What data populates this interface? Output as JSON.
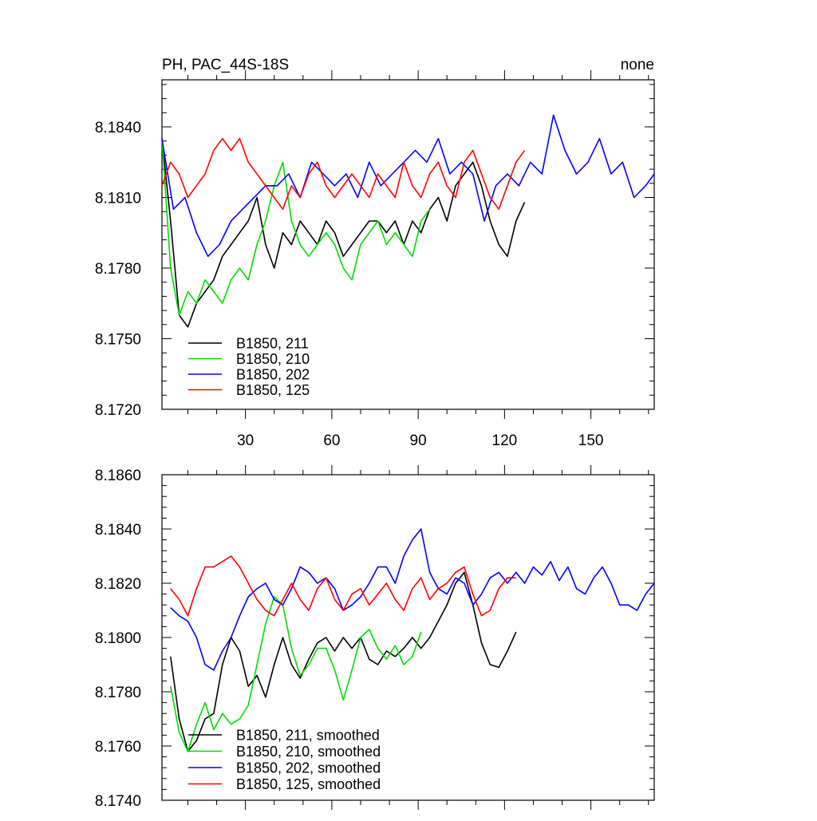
{
  "figure": {
    "title_left": "PH, PAC_44S-18S",
    "title_right": "none"
  },
  "colors": {
    "B1850_211": "#000000",
    "B1850_210": "#00dd00",
    "B1850_202": "#0000ff",
    "B1850_125": "#ff0000"
  },
  "chart_data": [
    {
      "type": "line",
      "title": "PH, PAC_44S-18S",
      "subtitle": "none",
      "xlabel": "",
      "ylabel": "",
      "xlim": [
        1,
        172
      ],
      "ylim": [
        8.172,
        8.186
      ],
      "xticks": [
        30,
        60,
        90,
        120,
        150
      ],
      "xtick_labels": [
        "30",
        "60",
        "90",
        "120",
        "150"
      ],
      "yticks": [
        8.172,
        8.175,
        8.178,
        8.181,
        8.184
      ],
      "ytick_labels": [
        "8.1720",
        "8.1750",
        "8.1780",
        "8.1810",
        "8.1840"
      ],
      "legend_position": "bottom-left",
      "series": [
        {
          "name": "B1850, 211",
          "color_key": "B1850_211",
          "x": [
            1,
            4,
            7,
            10,
            13,
            16,
            19,
            22,
            25,
            28,
            31,
            34,
            37,
            40,
            43,
            46,
            49,
            52,
            55,
            58,
            61,
            64,
            67,
            70,
            73,
            76,
            79,
            82,
            85,
            88,
            91,
            94,
            97,
            100,
            103,
            106,
            109,
            112,
            115,
            118,
            121,
            124,
            127
          ],
          "y": [
            8.1835,
            8.18,
            8.176,
            8.1755,
            8.1765,
            8.177,
            8.1775,
            8.1785,
            8.179,
            8.1795,
            8.18,
            8.181,
            8.179,
            8.178,
            8.1795,
            8.179,
            8.18,
            8.1795,
            8.179,
            8.18,
            8.1795,
            8.1785,
            8.179,
            8.1795,
            8.18,
            8.18,
            8.1795,
            8.18,
            8.179,
            8.18,
            8.1795,
            8.1805,
            8.181,
            8.18,
            8.1815,
            8.182,
            8.1825,
            8.1815,
            8.18,
            8.179,
            8.1785,
            8.18,
            8.1808
          ]
        },
        {
          "name": "B1850, 210",
          "color_key": "B1850_210",
          "x": [
            1,
            4,
            7,
            10,
            13,
            16,
            19,
            22,
            25,
            28,
            31,
            34,
            37,
            40,
            43,
            46,
            49,
            52,
            55,
            58,
            61,
            64,
            67,
            70,
            73,
            76,
            79,
            82,
            85,
            88,
            91,
            94
          ],
          "y": [
            8.1835,
            8.178,
            8.176,
            8.177,
            8.1765,
            8.1775,
            8.177,
            8.1765,
            8.1775,
            8.178,
            8.1775,
            8.179,
            8.18,
            8.1815,
            8.1825,
            8.18,
            8.179,
            8.1785,
            8.179,
            8.1795,
            8.179,
            8.178,
            8.1775,
            8.179,
            8.1795,
            8.18,
            8.179,
            8.1795,
            8.179,
            8.1785,
            8.18,
            8.1805
          ]
        },
        {
          "name": "B1850, 202",
          "color_key": "B1850_202",
          "x": [
            1,
            5,
            9,
            13,
            17,
            21,
            25,
            29,
            33,
            37,
            41,
            45,
            49,
            53,
            57,
            61,
            65,
            69,
            73,
            77,
            81,
            85,
            89,
            93,
            97,
            101,
            105,
            109,
            113,
            117,
            121,
            125,
            129,
            133,
            137,
            141,
            145,
            149,
            153,
            157,
            161,
            165,
            169,
            172
          ],
          "y": [
            8.1835,
            8.1805,
            8.181,
            8.1795,
            8.1785,
            8.179,
            8.18,
            8.1805,
            8.181,
            8.1815,
            8.1815,
            8.182,
            8.181,
            8.1825,
            8.182,
            8.1815,
            8.182,
            8.181,
            8.1825,
            8.1815,
            8.182,
            8.1825,
            8.183,
            8.1825,
            8.1835,
            8.182,
            8.1825,
            8.182,
            8.18,
            8.1815,
            8.182,
            8.1815,
            8.1825,
            8.182,
            8.1845,
            8.183,
            8.182,
            8.1825,
            8.1835,
            8.182,
            8.1825,
            8.181,
            8.1815,
            8.182
          ]
        },
        {
          "name": "B1850, 125",
          "color_key": "B1850_125",
          "x": [
            1,
            4,
            7,
            10,
            13,
            16,
            19,
            22,
            25,
            28,
            31,
            34,
            37,
            40,
            43,
            46,
            49,
            52,
            55,
            58,
            61,
            64,
            67,
            70,
            73,
            76,
            79,
            82,
            85,
            88,
            91,
            94,
            97,
            100,
            103,
            106,
            109,
            112,
            115,
            118,
            121,
            124,
            127
          ],
          "y": [
            8.1815,
            8.1825,
            8.182,
            8.181,
            8.1815,
            8.182,
            8.183,
            8.1835,
            8.183,
            8.1835,
            8.1825,
            8.182,
            8.1815,
            8.181,
            8.1805,
            8.1815,
            8.181,
            8.182,
            8.1825,
            8.1815,
            8.181,
            8.1815,
            8.182,
            8.1815,
            8.181,
            8.182,
            8.1815,
            8.181,
            8.1825,
            8.1815,
            8.181,
            8.182,
            8.1825,
            8.1815,
            8.181,
            8.1825,
            8.183,
            8.182,
            8.181,
            8.1805,
            8.1815,
            8.1825,
            8.183
          ]
        }
      ]
    },
    {
      "type": "line",
      "title": "",
      "xlabel": "",
      "ylabel": "",
      "xlim": [
        1,
        172
      ],
      "ylim": [
        8.174,
        8.186
      ],
      "xticks": [
        30,
        60,
        90,
        120,
        150
      ],
      "xtick_labels": [],
      "yticks": [
        8.174,
        8.176,
        8.178,
        8.18,
        8.182,
        8.184,
        8.186
      ],
      "ytick_labels": [
        "8.1740",
        "8.1760",
        "8.1780",
        "8.1800",
        "8.1820",
        "8.1840",
        "8.1860"
      ],
      "legend_position": "bottom-left",
      "series": [
        {
          "name": "B1850, 211, smoothed",
          "color_key": "B1850_211",
          "x": [
            4,
            7,
            10,
            13,
            16,
            19,
            22,
            25,
            28,
            31,
            34,
            37,
            40,
            43,
            46,
            49,
            52,
            55,
            58,
            61,
            64,
            67,
            70,
            73,
            76,
            79,
            82,
            85,
            88,
            91,
            94,
            97,
            100,
            103,
            106,
            109,
            112,
            115,
            118,
            121,
            124
          ],
          "y": [
            8.1793,
            8.177,
            8.1758,
            8.1762,
            8.177,
            8.1772,
            8.179,
            8.18,
            8.1795,
            8.1782,
            8.1786,
            8.1778,
            8.179,
            8.18,
            8.179,
            8.1785,
            8.1792,
            8.1798,
            8.18,
            8.1795,
            8.18,
            8.1796,
            8.18,
            8.1792,
            8.179,
            8.1795,
            8.1793,
            8.1796,
            8.18,
            8.1796,
            8.18,
            8.1806,
            8.1812,
            8.182,
            8.1824,
            8.1812,
            8.1798,
            8.179,
            8.1789,
            8.1795,
            8.1802
          ]
        },
        {
          "name": "B1850, 210, smoothed",
          "color_key": "B1850_210",
          "x": [
            4,
            7,
            10,
            13,
            16,
            19,
            22,
            25,
            28,
            31,
            34,
            37,
            40,
            43,
            46,
            49,
            52,
            55,
            58,
            61,
            64,
            67,
            70,
            73,
            76,
            79,
            82,
            85,
            88,
            91
          ],
          "y": [
            8.1782,
            8.1765,
            8.1758,
            8.1768,
            8.1776,
            8.1766,
            8.1772,
            8.1768,
            8.177,
            8.1775,
            8.179,
            8.1805,
            8.1815,
            8.1812,
            8.1796,
            8.1786,
            8.179,
            8.1796,
            8.1796,
            8.1788,
            8.1777,
            8.1788,
            8.18,
            8.1803,
            8.1796,
            8.1792,
            8.1797,
            8.179,
            8.1793,
            8.1802
          ]
        },
        {
          "name": "B1850, 202, smoothed",
          "color_key": "B1850_202",
          "x": [
            4,
            7,
            10,
            13,
            16,
            19,
            22,
            25,
            28,
            31,
            34,
            37,
            40,
            43,
            46,
            49,
            52,
            55,
            58,
            61,
            64,
            67,
            70,
            73,
            76,
            79,
            82,
            85,
            88,
            91,
            94,
            97,
            100,
            103,
            106,
            109,
            112,
            115,
            118,
            121,
            124,
            127,
            130,
            133,
            136,
            139,
            142,
            145,
            148,
            151,
            154,
            157,
            160,
            163,
            166,
            169,
            172
          ],
          "y": [
            8.1811,
            8.1808,
            8.1806,
            8.18,
            8.179,
            8.1788,
            8.1795,
            8.18,
            8.1808,
            8.1815,
            8.1818,
            8.182,
            8.1814,
            8.1812,
            8.1818,
            8.1826,
            8.1824,
            8.182,
            8.1822,
            8.1818,
            8.181,
            8.1812,
            8.1815,
            8.182,
            8.1826,
            8.1826,
            8.182,
            8.183,
            8.1836,
            8.184,
            8.1824,
            8.1818,
            8.1816,
            8.1822,
            8.182,
            8.1812,
            8.1816,
            8.1822,
            8.1824,
            8.182,
            8.1824,
            8.182,
            8.1826,
            8.1823,
            8.1828,
            8.1821,
            8.1826,
            8.1818,
            8.1816,
            8.1822,
            8.1826,
            8.182,
            8.1812,
            8.1812,
            8.181,
            8.1816,
            8.182
          ]
        },
        {
          "name": "B1850, 125, smoothed",
          "color_key": "B1850_125",
          "x": [
            4,
            7,
            10,
            13,
            16,
            19,
            22,
            25,
            28,
            31,
            34,
            37,
            40,
            43,
            46,
            49,
            52,
            55,
            58,
            61,
            64,
            67,
            70,
            73,
            76,
            79,
            82,
            85,
            88,
            91,
            94,
            97,
            100,
            103,
            106,
            109,
            112,
            115,
            118,
            121,
            124
          ],
          "y": [
            8.1818,
            8.1814,
            8.1808,
            8.1818,
            8.1826,
            8.1826,
            8.1828,
            8.183,
            8.1826,
            8.182,
            8.1814,
            8.181,
            8.1808,
            8.1814,
            8.182,
            8.1814,
            8.181,
            8.1818,
            8.1822,
            8.1814,
            8.181,
            8.1816,
            8.1818,
            8.1812,
            8.1816,
            8.182,
            8.1814,
            8.181,
            8.1818,
            8.1822,
            8.1814,
            8.1818,
            8.182,
            8.1824,
            8.1826,
            8.1816,
            8.1808,
            8.181,
            8.1818,
            8.1822,
            8.1822
          ]
        }
      ]
    }
  ]
}
